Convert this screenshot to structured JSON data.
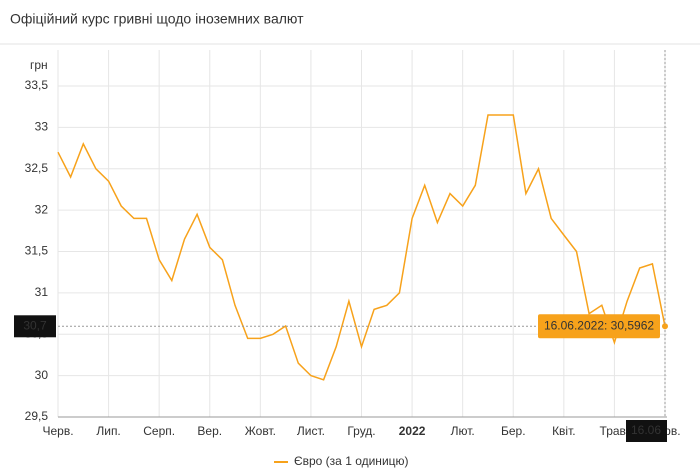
{
  "chart_data": {
    "type": "line",
    "title": "Офіційний курс гривні щодо іноземних валют",
    "y_label": "грн",
    "categories": [
      "Черв.",
      null,
      null,
      null,
      "Лип.",
      null,
      null,
      null,
      "Серп.",
      null,
      null,
      null,
      "Вер.",
      null,
      null,
      null,
      "Жовт.",
      null,
      null,
      null,
      "Лист.",
      null,
      null,
      null,
      "Груд.",
      null,
      null,
      null,
      "2022",
      null,
      null,
      null,
      "Лют.",
      null,
      null,
      null,
      "Бер.",
      null,
      null,
      null,
      "Квіт.",
      null,
      null,
      null,
      "Трав.",
      null,
      null,
      null,
      "Черв."
    ],
    "series": [
      {
        "name": "Євро (за 1 одиницю)",
        "color": "#f7a21b",
        "values": [
          32.7,
          32.4,
          32.8,
          32.5,
          32.35,
          32.05,
          31.9,
          31.9,
          31.4,
          31.15,
          31.65,
          31.95,
          31.55,
          31.4,
          30.85,
          30.45,
          30.45,
          30.5,
          30.6,
          30.15,
          30.0,
          29.95,
          30.35,
          30.9,
          30.35,
          30.8,
          30.85,
          31.0,
          31.9,
          32.3,
          31.85,
          32.2,
          32.05,
          32.3,
          33.15,
          33.15,
          33.15,
          32.2,
          32.5,
          31.9,
          31.7,
          31.5,
          30.75,
          30.85,
          30.4,
          30.9,
          31.3,
          31.35,
          30.5962
        ]
      }
    ],
    "ylim": [
      29.5,
      33.5
    ],
    "yticks": [
      {
        "value": 29.5,
        "label": "29,5"
      },
      30,
      {
        "value": 30.5,
        "label": "30,5"
      },
      31,
      {
        "value": 31.5,
        "label": "31,5"
      },
      32,
      {
        "value": 32.5,
        "label": "32,5"
      },
      33,
      {
        "value": 33.5,
        "label": "33,5"
      }
    ],
    "grid": true,
    "legend": "bottom",
    "tooltip": {
      "x_label": "16.06",
      "y_label": "30,7",
      "text": "16.06.2022: 30,5962"
    }
  }
}
